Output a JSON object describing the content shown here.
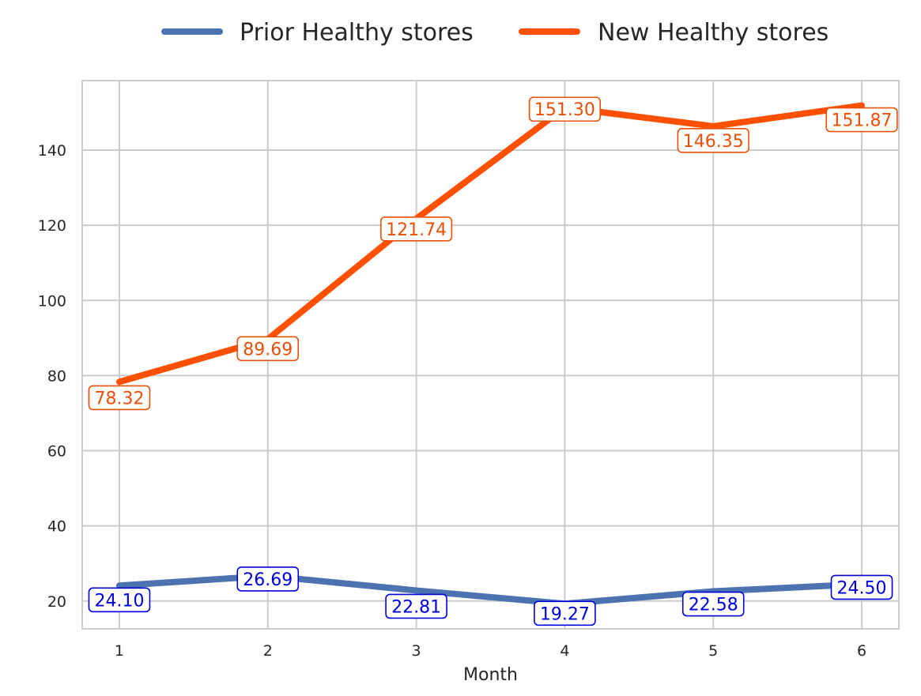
{
  "chart_data": {
    "type": "line",
    "xlabel": "Month",
    "ylabel": "",
    "x": [
      1,
      2,
      3,
      4,
      5,
      6
    ],
    "xlim": [
      0.75,
      6.25
    ],
    "ylim": [
      12.6,
      158.5
    ],
    "yticks": [
      20,
      40,
      60,
      80,
      100,
      120,
      140
    ],
    "grid": true,
    "legend_position": "top-center",
    "series": [
      {
        "name": "Prior Healthy stores",
        "color": "#4c72b0",
        "label_color": "#0000dd",
        "values": [
          24.1,
          26.69,
          22.81,
          19.27,
          22.58,
          24.5
        ],
        "labels": [
          "24.10",
          "26.69",
          "22.81",
          "19.27",
          "22.58",
          "24.50"
        ]
      },
      {
        "name": "New Healthy stores",
        "color": "#ff4f00",
        "label_color": "#e8500a",
        "values": [
          78.32,
          89.69,
          121.74,
          151.3,
          146.35,
          151.87
        ],
        "labels": [
          "78.32",
          "89.69",
          "121.74",
          "151.30",
          "146.35",
          "151.87"
        ]
      }
    ]
  }
}
